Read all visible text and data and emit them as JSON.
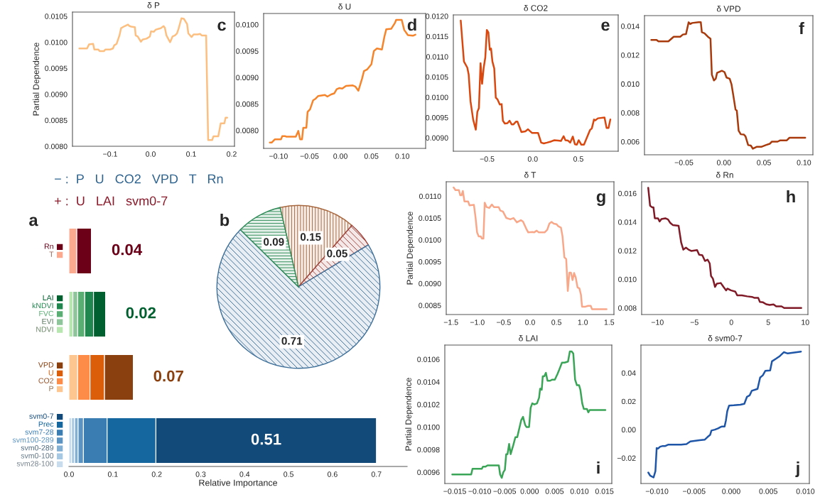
{
  "chart_data": [
    {
      "type": "other",
      "annotations": [
        "− :  P   U   CO2   VPD   T   Rn",
        "+ :  U   LAI   svm0-7"
      ]
    },
    {
      "type": "bar",
      "orientation": "horizontal",
      "stacked": true,
      "xlabel": "Relative Importance",
      "categories": [
        null,
        null,
        null,
        null
      ],
      "xlim": [
        0,
        0.77
      ],
      "xticks": [
        {
          "value": 0,
          "label": "0.0"
        },
        {
          "value": 0.1,
          "label": "0.1"
        },
        {
          "value": 0.2,
          "label": "0.2"
        },
        {
          "value": 0.3,
          "label": "0.3"
        },
        {
          "value": 0.4,
          "label": "0.4"
        },
        {
          "value": 0.5,
          "label": "0.5"
        },
        {
          "value": 0.6,
          "label": "0.6"
        },
        {
          "value": 0.7,
          "label": "0.7"
        }
      ],
      "tick_labels": "x",
      "legend": "left",
      "annotations": [
        "a",
        "0.04",
        "0.02",
        "0.07",
        "0.51"
      ],
      "series": [
        {
          "name": "T",
          "color": "#fba98f",
          "values": [
            0.018,
            null,
            null,
            null
          ]
        },
        {
          "name": "Rn",
          "color": "#6b0018",
          "values": [
            0.034,
            null,
            null,
            null
          ]
        },
        {
          "name": "NDVI",
          "color": "#b8e6b0",
          "values": [
            null,
            0.009,
            null,
            null
          ]
        },
        {
          "name": "EVI",
          "color": "#8fc59a",
          "values": [
            null,
            0.011,
            null,
            null
          ]
        },
        {
          "name": "FVC",
          "color": "#5aae74",
          "values": [
            null,
            0.016,
            null,
            null
          ]
        },
        {
          "name": "kNDVI",
          "color": "#20874f",
          "values": [
            null,
            0.02,
            null,
            null
          ]
        },
        {
          "name": "LAI",
          "color": "#00602f",
          "values": [
            null,
            0.028,
            null,
            null
          ]
        },
        {
          "name": "P",
          "color": "#fdc590",
          "values": [
            null,
            null,
            0.02,
            null
          ]
        },
        {
          "name": "CO2",
          "color": "#fc8c47",
          "values": [
            null,
            null,
            0.028,
            null
          ]
        },
        {
          "name": "U",
          "color": "#db5e0b",
          "values": [
            null,
            null,
            0.033,
            null
          ]
        },
        {
          "name": "VPD",
          "color": "#8a400f",
          "values": [
            null,
            null,
            0.066,
            null
          ]
        },
        {
          "name": "svm28-100",
          "color": "#c8dcee",
          "values": [
            null,
            null,
            null,
            0.006
          ]
        },
        {
          "name": "svm0-100",
          "color": "#a6c8e3",
          "values": [
            null,
            null,
            null,
            0.007
          ]
        },
        {
          "name": "svm0-289",
          "color": "#82afd4",
          "values": [
            null,
            null,
            null,
            0.008
          ]
        },
        {
          "name": "svm100-289",
          "color": "#5b94c3",
          "values": [
            null,
            null,
            null,
            0.012
          ]
        },
        {
          "name": "svm7-28",
          "color": "#3a7db2",
          "values": [
            null,
            null,
            null,
            0.054
          ]
        },
        {
          "name": "Prec",
          "color": "#15679f",
          "values": [
            null,
            null,
            null,
            0.111
          ]
        },
        {
          "name": "svm0-7",
          "color": "#124a7a",
          "values": [
            null,
            null,
            null,
            0.502
          ]
        }
      ]
    },
    {
      "type": "pie",
      "categories": [
        null,
        null,
        null,
        null
      ],
      "values": [
        0.15,
        0.05,
        0.71,
        0.09
      ],
      "colors": [
        "#a8683f",
        "#a0443c",
        "#3d6f99",
        "#2e8b57"
      ],
      "data_labels": true,
      "annotations": [
        "b"
      ]
    },
    {
      "type": "line",
      "title": "δ P",
      "ylabel": "Partial Dependence",
      "color": "#fdbf80",
      "annotations": [
        "c"
      ],
      "xlim": [
        -0.193,
        0.207
      ],
      "ylim": [
        0.008,
        0.01058
      ],
      "xticks": [
        {
          "value": -0.1,
          "label": "−0.1"
        },
        {
          "value": 0,
          "label": "0.0"
        },
        {
          "value": 0.1,
          "label": "0.1"
        },
        {
          "value": 0.2,
          "label": "0.2"
        }
      ],
      "yticks": [
        {
          "value": 0.008,
          "label": "0.0080"
        },
        {
          "value": 0.0085,
          "label": "0.0085"
        },
        {
          "value": 0.009,
          "label": "0.0090"
        },
        {
          "value": 0.0095,
          "label": "0.0095"
        },
        {
          "value": 0.01,
          "label": "0.0100"
        },
        {
          "value": 0.0105,
          "label": "0.0105"
        }
      ],
      "x": [
        -0.176,
        -0.157,
        -0.152,
        -0.142,
        -0.139,
        -0.129,
        -0.126,
        -0.115,
        -0.112,
        -0.1,
        -0.093,
        -0.09,
        -0.084,
        -0.077,
        -0.073,
        -0.064,
        -0.056,
        -0.052,
        -0.048,
        -0.039,
        -0.037,
        -0.032,
        -0.024,
        -0.02,
        -0.01,
        -0.002,
        0.001,
        0.008,
        0.012,
        0.02,
        0.025,
        0.032,
        0.035,
        0.039,
        0.048,
        0.054,
        0.06,
        0.065,
        0.069,
        0.076,
        0.082,
        0.09,
        0.093,
        0.101,
        0.106,
        0.116,
        0.122,
        0.126,
        0.137,
        0.142,
        0.152,
        0.155,
        0.167,
        0.173,
        0.182,
        0.185,
        0.189
      ],
      "values": [
        0.00988,
        0.00988,
        0.00996,
        0.00997,
        0.00986,
        0.00986,
        0.00983,
        0.00983,
        0.00986,
        0.00986,
        0.00988,
        0.00994,
        0.00997,
        0.01013,
        0.01027,
        0.01031,
        0.01034,
        0.01031,
        0.0103,
        0.01029,
        0.01013,
        0.01011,
        0.01001,
        0.01005,
        0.01007,
        0.01011,
        0.01021,
        0.0102,
        0.01024,
        0.01026,
        0.01027,
        0.01031,
        0.01028,
        0.01013,
        0.01,
        0.01011,
        0.01013,
        0.01017,
        0.01026,
        0.01046,
        0.01045,
        0.01035,
        0.01017,
        0.0101,
        0.01015,
        0.01015,
        0.01016,
        0.01013,
        0.01013,
        0.00812,
        0.00812,
        0.00819,
        0.00819,
        0.00844,
        0.00844,
        0.00855,
        0.00855
      ]
    },
    {
      "type": "line",
      "title": "δ U",
      "color": "#f5842a",
      "annotations": [
        "d"
      ],
      "xlim": [
        -0.124,
        0.1376
      ],
      "ylim": [
        0.00766,
        0.01021
      ],
      "xticks": [
        {
          "value": -0.1,
          "label": "−0.10"
        },
        {
          "value": -0.05,
          "label": "−0.05"
        },
        {
          "value": 0,
          "label": "0.00"
        },
        {
          "value": 0.05,
          "label": "0.05"
        },
        {
          "value": 0.1,
          "label": "0.10"
        }
      ],
      "yticks": [
        {
          "value": 0.008,
          "label": "0.0080"
        },
        {
          "value": 0.0085,
          "label": "0.0085"
        },
        {
          "value": 0.009,
          "label": "0.0090"
        },
        {
          "value": 0.0095,
          "label": "0.0095"
        },
        {
          "value": 0.01,
          "label": "0.0100"
        }
      ],
      "x": [
        -0.114,
        -0.111,
        -0.106,
        -0.096,
        -0.094,
        -0.089,
        -0.087,
        -0.072,
        -0.068,
        -0.065,
        -0.062,
        -0.06,
        -0.055,
        -0.053,
        -0.049,
        -0.044,
        -0.04,
        -0.036,
        -0.025,
        -0.021,
        -0.015,
        -0.01,
        -0.006,
        -0.002,
        0.003,
        0.009,
        0.02,
        0.024,
        0.029,
        0.035,
        0.038,
        0.043,
        0.05,
        0.054,
        0.059,
        0.067,
        0.071,
        0.074,
        0.082,
        0.088,
        0.09,
        0.099,
        0.103,
        0.109,
        0.117,
        0.121
      ],
      "values": [
        0.00777,
        0.00777,
        0.00783,
        0.00783,
        0.00789,
        0.00789,
        0.00788,
        0.00788,
        0.00799,
        0.00783,
        0.00783,
        0.00805,
        0.00805,
        0.00835,
        0.0084,
        0.00857,
        0.0086,
        0.00865,
        0.00867,
        0.00864,
        0.00868,
        0.0087,
        0.00878,
        0.0088,
        0.00879,
        0.00884,
        0.00885,
        0.00883,
        0.00875,
        0.00898,
        0.00912,
        0.00915,
        0.00925,
        0.0095,
        0.00955,
        0.00953,
        0.00977,
        0.00991,
        0.00992,
        0.01003,
        0.01009,
        0.01009,
        0.0099,
        0.0098,
        0.00979,
        0.00981
      ]
    },
    {
      "type": "line",
      "title": "δ CO2",
      "color": "#d9480f",
      "annotations": [
        "e"
      ],
      "xlim": [
        -0.87,
        0.936
      ],
      "ylim": [
        0.008668,
        0.01203
      ],
      "xticks": [
        {
          "value": -0.5,
          "label": "−0.5"
        },
        {
          "value": 0,
          "label": "0.0"
        },
        {
          "value": 0.5,
          "label": "0.5"
        }
      ],
      "yticks": [
        {
          "value": 0.009,
          "label": "0.0090"
        },
        {
          "value": 0.0095,
          "label": "0.0095"
        },
        {
          "value": 0.01,
          "label": "0.0100"
        },
        {
          "value": 0.0105,
          "label": "0.0105"
        },
        {
          "value": 0.011,
          "label": "0.0110"
        },
        {
          "value": 0.0115,
          "label": "0.0115"
        },
        {
          "value": 0.012,
          "label": "0.0120"
        }
      ],
      "x": [
        -0.789,
        -0.754,
        -0.717,
        -0.702,
        -0.682,
        -0.653,
        -0.624,
        -0.607,
        -0.59,
        -0.572,
        -0.555,
        -0.538,
        -0.52,
        -0.503,
        -0.486,
        -0.471,
        -0.457,
        -0.442,
        -0.422,
        -0.405,
        -0.387,
        -0.361,
        -0.341,
        -0.327,
        -0.306,
        -0.277,
        -0.254,
        -0.231,
        -0.211,
        -0.182,
        -0.168,
        -0.124,
        -0.081,
        -0.052,
        -0.009,
        0.058,
        0.092,
        0.121,
        0.156,
        0.202,
        0.237,
        0.28,
        0.309,
        0.338,
        0.358,
        0.387,
        0.41,
        0.439,
        0.462,
        0.483,
        0.503,
        0.532,
        0.561,
        0.598,
        0.627,
        0.647,
        0.671,
        0.685,
        0.714,
        0.786,
        0.809,
        0.83,
        0.85
      ],
      "values": [
        0.01189,
        0.01088,
        0.01073,
        0.01056,
        0.0099,
        0.00945,
        0.0092,
        0.00964,
        0.00973,
        0.01084,
        0.01033,
        0.01072,
        0.01098,
        0.01166,
        0.0116,
        0.01117,
        0.0112,
        0.01088,
        0.01071,
        0.00999,
        0.00995,
        0.00982,
        0.00983,
        0.00942,
        0.00935,
        0.00936,
        0.00942,
        0.00933,
        0.00933,
        0.0094,
        0.0094,
        0.00914,
        0.00916,
        0.00921,
        0.00912,
        0.00912,
        0.00888,
        0.00886,
        0.00888,
        0.00891,
        0.00894,
        0.00893,
        0.00892,
        0.00904,
        0.00894,
        0.00893,
        0.00888,
        0.00903,
        0.00884,
        0.00883,
        0.00894,
        0.00883,
        0.00883,
        0.00903,
        0.00919,
        0.00923,
        0.00945,
        0.00943,
        0.00948,
        0.0095,
        0.00924,
        0.00924,
        0.00945
      ]
    },
    {
      "type": "line",
      "title": "δ VPD",
      "color": "#a83a0c",
      "annotations": [
        "f"
      ],
      "xlim": [
        -0.0993,
        0.1112
      ],
      "ylim": [
        0.00509,
        0.01473
      ],
      "xticks": [
        {
          "value": -0.05,
          "label": "−0.05"
        },
        {
          "value": 0,
          "label": "0.00"
        },
        {
          "value": 0.05,
          "label": "0.05"
        },
        {
          "value": 0.1,
          "label": "0.10"
        }
      ],
      "yticks": [
        {
          "value": 0.006,
          "label": "0.006"
        },
        {
          "value": 0.008,
          "label": "0.008"
        },
        {
          "value": 0.01,
          "label": "0.010"
        },
        {
          "value": 0.012,
          "label": "0.012"
        },
        {
          "value": 0.014,
          "label": "0.014"
        }
      ],
      "x": [
        -0.0908,
        -0.0842,
        -0.0819,
        -0.0694,
        -0.0628,
        -0.0546,
        -0.0513,
        -0.0474,
        -0.0441,
        -0.0421,
        -0.0398,
        -0.0316,
        -0.0289,
        -0.0276,
        -0.0243,
        -0.0201,
        -0.0168,
        -0.0151,
        -0.0125,
        -0.0102,
        -0.0086,
        -0.0026,
        0.0007,
        0.0033,
        0.0072,
        0.0095,
        0.0118,
        0.0145,
        0.0161,
        0.0184,
        0.0211,
        0.025,
        0.027,
        0.0303,
        0.0336,
        0.0362,
        0.0408,
        0.0467,
        0.0523,
        0.0572,
        0.0599,
        0.0671,
        0.0704,
        0.0786,
        0.0819,
        0.1016
      ],
      "values": [
        0.01305,
        0.01305,
        0.01295,
        0.01295,
        0.01327,
        0.01327,
        0.01342,
        0.01345,
        0.01427,
        0.01415,
        0.01422,
        0.01427,
        0.01427,
        0.01358,
        0.01351,
        0.01327,
        0.01313,
        0.01064,
        0.01024,
        0.01036,
        0.01076,
        0.01091,
        0.01082,
        0.01044,
        0.01036,
        0.00996,
        0.00918,
        0.00822,
        0.00815,
        0.00676,
        0.00651,
        0.00649,
        0.00636,
        0.00576,
        0.00573,
        0.00551,
        0.00564,
        0.00564,
        0.00576,
        0.00585,
        0.006,
        0.006,
        0.00609,
        0.00609,
        0.00627,
        0.00627
      ]
    },
    {
      "type": "line",
      "title": "δ T",
      "ylabel": "Partial Dependence",
      "color": "#f9a789",
      "annotations": [
        "g"
      ],
      "xlim": [
        -1.59,
        1.59
      ],
      "ylim": [
        0.00829,
        0.01133
      ],
      "xticks": [
        {
          "value": -1.5,
          "label": "−1.5"
        },
        {
          "value": -1,
          "label": "−1.0"
        },
        {
          "value": -0.5,
          "label": "−0.5"
        },
        {
          "value": 0,
          "label": "0.0"
        },
        {
          "value": 0.5,
          "label": "0.5"
        },
        {
          "value": 1,
          "label": "1.0"
        },
        {
          "value": 1.5,
          "label": "1.5"
        }
      ],
      "yticks": [
        {
          "value": 0.0085,
          "label": "0.0085"
        },
        {
          "value": 0.009,
          "label": "0.0090"
        },
        {
          "value": 0.0095,
          "label": "0.0095"
        },
        {
          "value": 0.01,
          "label": "0.0100"
        },
        {
          "value": 0.0105,
          "label": "0.0105"
        },
        {
          "value": 0.011,
          "label": "0.0110"
        }
      ],
      "x": [
        -1.45,
        -1.415,
        -1.35,
        -1.325,
        -1.3,
        -1.275,
        -1.245,
        -1.175,
        -1.15,
        -1.065,
        -1.035,
        -1.005,
        -0.975,
        -0.935,
        -0.915,
        -0.885,
        -0.86,
        -0.825,
        -0.775,
        -0.725,
        -0.685,
        -0.595,
        -0.565,
        -0.515,
        -0.45,
        -0.375,
        -0.315,
        -0.25,
        -0.175,
        -0.135,
        -0.075,
        -0.035,
        0.05,
        0.075,
        0.125,
        0.165,
        0.275,
        0.325,
        0.365,
        0.405,
        0.45,
        0.5,
        0.535,
        0.585,
        0.615,
        0.65,
        0.685,
        0.715,
        0.745,
        0.775,
        0.805,
        0.835,
        0.865,
        0.9,
        0.935,
        0.965,
        0.985,
        1.05,
        1.1,
        1.15,
        1.175,
        1.45
      ],
      "values": [
        0.0112,
        0.01114,
        0.01114,
        0.01102,
        0.01102,
        0.01112,
        0.01088,
        0.01088,
        0.01079,
        0.0108,
        0.01052,
        0.01017,
        0.01008,
        0.01008,
        0.01003,
        0.01003,
        0.01085,
        0.01075,
        0.01073,
        0.01081,
        0.01075,
        0.01075,
        0.01067,
        0.01065,
        0.0105,
        0.01047,
        0.0105,
        0.0104,
        0.01045,
        0.01042,
        0.01026,
        0.01017,
        0.01018,
        0.01017,
        0.01021,
        0.01017,
        0.01017,
        0.01023,
        0.01037,
        0.01041,
        0.01037,
        0.01036,
        0.01031,
        0.01028,
        0.01008,
        0.0096,
        0.00956,
        0.00883,
        0.00925,
        0.00925,
        0.00908,
        0.00924,
        0.00914,
        0.00891,
        0.00889,
        0.00874,
        0.00847,
        0.00847,
        0.00849,
        0.00849,
        0.00841,
        0.00841
      ]
    },
    {
      "type": "line",
      "title": "δ Rn",
      "color": "#7f1a26",
      "annotations": [
        "h"
      ],
      "xlim": [
        -12.14,
        10.36
      ],
      "ylim": [
        0.00754,
        0.01681
      ],
      "xticks": [
        {
          "value": -10,
          "label": "−10"
        },
        {
          "value": -5,
          "label": "−5"
        },
        {
          "value": 0,
          "label": "0"
        },
        {
          "value": 5,
          "label": "5"
        },
        {
          "value": 10,
          "label": "10"
        }
      ],
      "yticks": [
        {
          "value": 0.008,
          "label": "0.008"
        },
        {
          "value": 0.01,
          "label": "0.010"
        },
        {
          "value": 0.012,
          "label": "0.012"
        },
        {
          "value": 0.014,
          "label": "0.014"
        },
        {
          "value": 0.016,
          "label": "0.016"
        }
      ],
      "x": [
        -11.25,
        -11.0,
        -10.71,
        -10.54,
        -10.36,
        -9.93,
        -9.71,
        -9.46,
        -8.93,
        -8.57,
        -8.29,
        -7.93,
        -7.14,
        -6.79,
        -6.5,
        -6.14,
        -5.79,
        -5.43,
        -4.64,
        -4.36,
        -3.93,
        -3.57,
        -3.21,
        -2.93,
        -2.75,
        -2.5,
        -2.21,
        -1.96,
        -1.43,
        -1.07,
        -0.71,
        -0.54,
        -0.07,
        0.54,
        0.79,
        1.43,
        2.14,
        2.79,
        3.14,
        3.64,
        3.86,
        4.29,
        4.71,
        5.18,
        5.71,
        6.07,
        6.79,
        7.14,
        9.46
      ],
      "values": [
        0.01639,
        0.01514,
        0.01502,
        0.01502,
        0.01426,
        0.01426,
        0.01404,
        0.01421,
        0.01426,
        0.01418,
        0.01395,
        0.01379,
        0.01374,
        0.01256,
        0.01207,
        0.01221,
        0.01207,
        0.01198,
        0.01204,
        0.01172,
        0.01168,
        0.01128,
        0.01137,
        0.01111,
        0.01023,
        0.01005,
        0.00947,
        0.0097,
        0.00974,
        0.00947,
        0.00923,
        0.00935,
        0.00923,
        0.00914,
        0.00888,
        0.00888,
        0.00881,
        0.00877,
        0.0087,
        0.0087,
        0.00842,
        0.00839,
        0.00826,
        0.00821,
        0.00825,
        0.00811,
        0.00811,
        0.008,
        0.008
      ]
    },
    {
      "type": "line",
      "title": "δ LAI",
      "ylabel": "Partial Dependence",
      "color": "#3aa556",
      "annotations": [
        "i"
      ],
      "xlim": [
        -0.017,
        0.01648
      ],
      "ylim": [
        0.0095,
        0.010726
      ],
      "xticks": [
        {
          "value": -0.015,
          "label": "−0.015"
        },
        {
          "value": -0.01,
          "label": "−0.010"
        },
        {
          "value": -0.005,
          "label": "−0.005"
        },
        {
          "value": 0,
          "label": "0.000"
        },
        {
          "value": 0.005,
          "label": "0.005"
        },
        {
          "value": 0.01,
          "label": "0.010"
        },
        {
          "value": 0.015,
          "label": "0.015"
        }
      ],
      "yticks": [
        {
          "value": 0.0096,
          "label": "0.0096"
        },
        {
          "value": 0.0098,
          "label": "0.0098"
        },
        {
          "value": 0.01,
          "label": "0.0100"
        },
        {
          "value": 0.0102,
          "label": "0.0102"
        },
        {
          "value": 0.0104,
          "label": "0.0104"
        },
        {
          "value": 0.0106,
          "label": "0.0106"
        }
      ],
      "x": [
        -0.01551,
        -0.01171,
        -0.01145,
        -0.0096,
        -0.00934,
        -0.00881,
        -0.00844,
        -0.00617,
        -0.00591,
        -0.00559,
        -0.00527,
        -0.00496,
        -0.00469,
        -0.00443,
        -0.00411,
        -0.0038,
        -0.00327,
        -0.00285,
        -0.00248,
        -0.00169,
        -0.00132,
        -0.0009,
        -0.00063,
        -0.00011,
        0.00021,
        0.00053,
        0.00095,
        0.00148,
        0.0019,
        0.00211,
        0.00243,
        0.00264,
        0.00295,
        0.00327,
        0.00359,
        0.00411,
        0.00454,
        0.00506,
        0.00559,
        0.00596,
        0.00649,
        0.00701,
        0.0077,
        0.00807,
        0.00844,
        0.00876,
        0.00912,
        0.00949,
        0.00992,
        0.01018,
        0.01055,
        0.01087,
        0.0115,
        0.01177,
        0.01203,
        0.01519
      ],
      "values": [
        0.00958,
        0.00958,
        0.00963,
        0.00963,
        0.00965,
        0.00965,
        0.00966,
        0.00966,
        0.00958,
        0.00955,
        0.0096,
        0.00962,
        0.00976,
        0.00976,
        0.00985,
        0.00976,
        0.00984,
        0.00991,
        0.00991,
        0.01006,
        0.01009,
        0.01002,
        0.01,
        0.01,
        0.01017,
        0.01021,
        0.0102,
        0.01021,
        0.01026,
        0.01034,
        0.01033,
        0.01045,
        0.01045,
        0.01048,
        0.01041,
        0.01041,
        0.01042,
        0.01042,
        0.01047,
        0.01051,
        0.01057,
        0.01057,
        0.01058,
        0.01067,
        0.01067,
        0.01065,
        0.01042,
        0.01037,
        0.01037,
        0.01033,
        0.01021,
        0.01016,
        0.01016,
        0.01013,
        0.01015,
        0.01015
      ]
    },
    {
      "type": "line",
      "title": "δ svm0-7",
      "color": "#1f56a8",
      "annotations": [
        "j"
      ],
      "xlim": [
        -0.01216,
        0.01053
      ],
      "ylim": [
        -0.03796,
        0.05963
      ],
      "xticks": [
        {
          "value": -0.01,
          "label": "−0.010"
        },
        {
          "value": -0.005,
          "label": "−0.005"
        },
        {
          "value": 0,
          "label": "0.000"
        },
        {
          "value": 0.005,
          "label": "0.005"
        },
        {
          "value": 0.01,
          "label": "0.010"
        }
      ],
      "yticks": [
        {
          "value": -0.02,
          "label": "−0.02"
        },
        {
          "value": 0,
          "label": "0.00"
        },
        {
          "value": 0.02,
          "label": "0.02"
        },
        {
          "value": 0.04,
          "label": "0.04"
        }
      ],
      "x": [
        -0.01117,
        -0.01092,
        -0.01046,
        -0.01021,
        -0.01004,
        -0.00986,
        -0.00957,
        -0.00922,
        -0.00887,
        -0.00851,
        -0.00745,
        -0.00674,
        -0.00603,
        -0.0055,
        -0.00479,
        -0.00426,
        -0.00355,
        -0.00319,
        -0.00284,
        -0.00266,
        -0.0022,
        -0.00177,
        -0.00142,
        -0.00124,
        -0.00089,
        -0.00071,
        -0.00053,
        -0.00028,
        0.00035,
        0.00124,
        0.00177,
        0.00213,
        0.00248,
        0.00277,
        0.00326,
        0.00355,
        0.0039,
        0.00426,
        0.00461,
        0.00525,
        0.0055,
        0.00603,
        0.00656,
        0.00709,
        0.00762,
        0.00833,
        0.0094
      ],
      "values": [
        -0.0302,
        -0.0324,
        -0.0337,
        -0.0293,
        -0.013,
        -0.0133,
        -0.012,
        -0.0115,
        -0.0115,
        -0.0106,
        -0.0106,
        -0.0106,
        -0.0102,
        -0.0083,
        -0.0078,
        -0.0074,
        -0.007,
        -0.0052,
        -0.0037,
        -0.0006,
        0.0,
        0.0009,
        0.0019,
        0.0022,
        0.0022,
        0.0065,
        0.013,
        0.017,
        0.0172,
        0.0176,
        0.0182,
        0.0232,
        0.0241,
        0.0274,
        0.0282,
        0.0287,
        0.0367,
        0.0383,
        0.0415,
        0.0417,
        0.0482,
        0.05,
        0.0519,
        0.0546,
        0.0537,
        0.0543,
        0.055
      ]
    }
  ]
}
